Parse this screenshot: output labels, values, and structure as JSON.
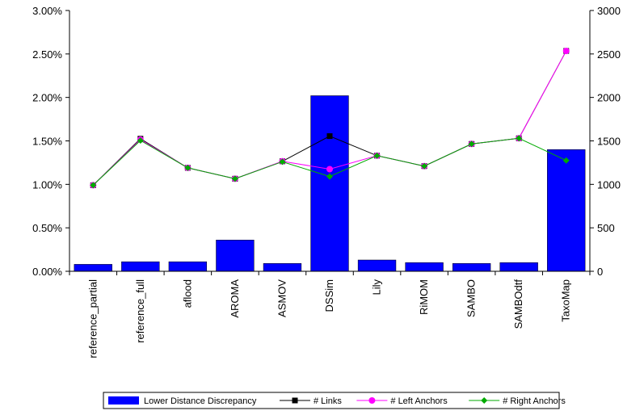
{
  "chart_data": {
    "type": "bar",
    "categories": [
      "reference_partial",
      "reference_full",
      "aflood",
      "AROMA",
      "ASMOV",
      "DSSim",
      "Lily",
      "RiMOM",
      "SAMBO",
      "SAMBOdtf",
      "TaxoMap"
    ],
    "bar_series": {
      "name": "Lower Distance Discrepancy",
      "axis": "left",
      "values": [
        0.08,
        0.11,
        0.11,
        0.36,
        0.09,
        2.02,
        0.13,
        0.1,
        0.09,
        0.1,
        1.4
      ],
      "color": "#0000ff"
    },
    "line_series": [
      {
        "name": "# Links",
        "axis": "right",
        "values": [
          990,
          1525,
          1190,
          1065,
          1265,
          1555,
          1330,
          1210,
          1465,
          1530,
          2535
        ],
        "color": "#000000",
        "marker": "square"
      },
      {
        "name": "# Left Anchors",
        "axis": "right",
        "values": [
          990,
          1515,
          1190,
          1065,
          1265,
          1175,
          1330,
          1210,
          1465,
          1530,
          2535
        ],
        "color": "#ff00ff",
        "marker": "circle"
      },
      {
        "name": "# Right Anchors",
        "axis": "right",
        "values": [
          990,
          1505,
          1190,
          1065,
          1260,
          1090,
          1330,
          1210,
          1465,
          1530,
          1275
        ],
        "color": "#00aa00",
        "marker": "diamond"
      }
    ],
    "y_left": {
      "min": 0,
      "max": 3.0,
      "ticks": [
        0,
        0.5,
        1.0,
        1.5,
        2.0,
        2.5,
        3.0
      ],
      "tick_labels": [
        "0.00%",
        "0.50%",
        "1.00%",
        "1.50%",
        "2.00%",
        "2.50%",
        "3.00%"
      ]
    },
    "y_right": {
      "min": 0,
      "max": 3000,
      "ticks": [
        0,
        500,
        1000,
        1500,
        2000,
        2500,
        3000
      ],
      "tick_labels": [
        "0",
        "500",
        "1000",
        "1500",
        "2000",
        "2500",
        "3000"
      ]
    },
    "grid": false,
    "legend_position": "bottom"
  }
}
